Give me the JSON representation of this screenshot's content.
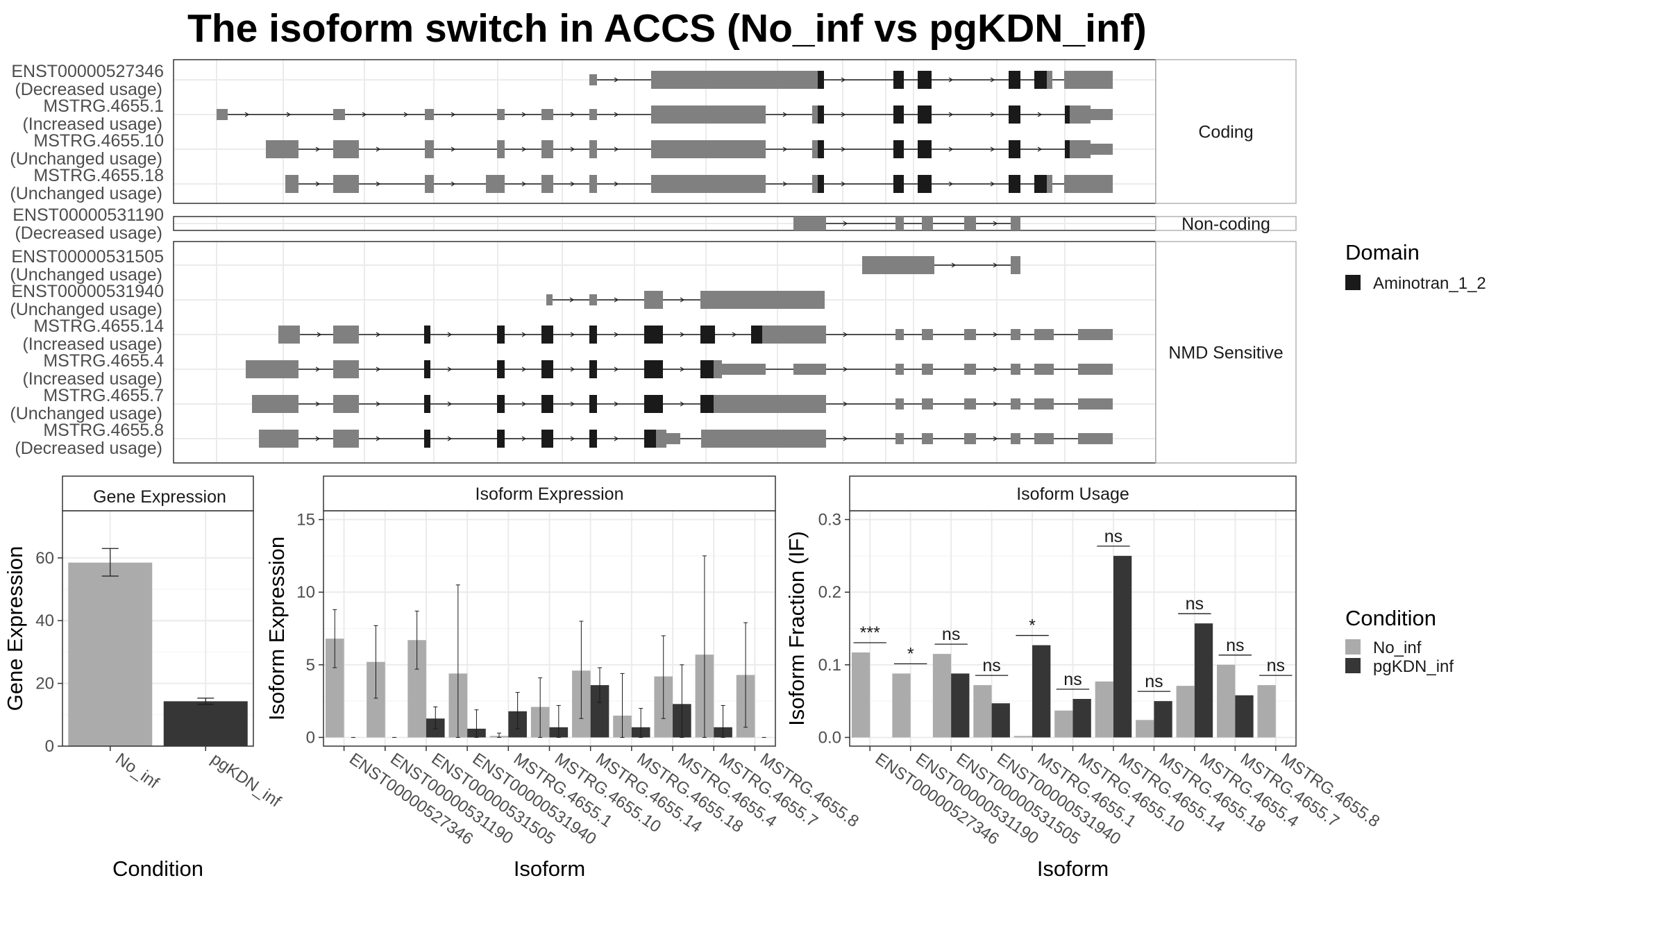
{
  "title": "The isoform switch in ACCS (No_inf vs pgKDN_inf)",
  "colors": {
    "no_inf": "#ababab",
    "pgkdn_inf": "#363636",
    "exon": "#808080",
    "domain": "#1a1a1a"
  },
  "structure": {
    "facets": [
      {
        "label": "Coding",
        "isoforms": [
          {
            "id": "ENST00000527346",
            "usage": "(Decreased usage)"
          },
          {
            "id": "MSTRG.4655.1",
            "usage": "(Increased usage)"
          },
          {
            "id": "MSTRG.4655.10",
            "usage": "(Unchanged usage)"
          },
          {
            "id": "MSTRG.4655.18",
            "usage": "(Unchanged usage)"
          }
        ]
      },
      {
        "label": "Non-coding",
        "isoforms": [
          {
            "id": "ENST00000531190",
            "usage": "(Decreased usage)"
          }
        ]
      },
      {
        "label": "NMD Sensitive",
        "isoforms": [
          {
            "id": "ENST00000531505",
            "usage": "(Unchanged usage)"
          },
          {
            "id": "ENST00000531940",
            "usage": "(Unchanged usage)"
          },
          {
            "id": "MSTRG.4655.14",
            "usage": "(Increased usage)"
          },
          {
            "id": "MSTRG.4655.4",
            "usage": "(Increased usage)"
          },
          {
            "id": "MSTRG.4655.7",
            "usage": "(Unchanged usage)"
          },
          {
            "id": "MSTRG.4655.8",
            "usage": "(Decreased usage)"
          }
        ]
      }
    ],
    "domain_legend": {
      "title": "Domain",
      "items": [
        "Aminotran_1_2"
      ]
    }
  },
  "condition_legend": {
    "title": "Condition",
    "items": [
      "No_inf",
      "pgKDN_inf"
    ]
  },
  "chart_data": [
    {
      "type": "bar",
      "strip": "Gene Expression",
      "xlabel": "Condition",
      "ylabel": "Gene Expression",
      "categories": [
        "No_inf",
        "pgKDN_inf"
      ],
      "values": [
        58.5,
        14.3
      ],
      "error_low": [
        54.2,
        13.3
      ],
      "error_high": [
        63.0,
        15.3
      ],
      "ylim": [
        0,
        75
      ],
      "yticks": [
        0,
        20,
        40,
        60
      ]
    },
    {
      "type": "bar",
      "strip": "Isoform Expression",
      "xlabel": "Isoform",
      "ylabel": "Isoform Expression",
      "categories": [
        "ENST00000527346",
        "ENST00000531190",
        "ENST00000531505",
        "ENST00000531940",
        "MSTRG.4655.1",
        "MSTRG.4655.10",
        "MSTRG.4655.14",
        "MSTRG.4655.18",
        "MSTRG.4655.4",
        "MSTRG.4655.7",
        "MSTRG.4655.8"
      ],
      "series": [
        {
          "name": "No_inf",
          "values": [
            6.8,
            5.2,
            6.7,
            4.4,
            0.1,
            2.1,
            4.6,
            1.5,
            4.2,
            5.7,
            4.3
          ],
          "error_low": [
            4.8,
            2.7,
            4.7,
            0.0,
            0.0,
            0.0,
            1.3,
            0.0,
            1.3,
            0.0,
            0.7
          ],
          "error_high": [
            8.8,
            7.7,
            8.7,
            10.5,
            0.3,
            4.1,
            8.0,
            4.4,
            7.0,
            12.5,
            7.9
          ]
        },
        {
          "name": "pgKDN_inf",
          "values": [
            0.0,
            0.0,
            1.3,
            0.6,
            1.8,
            0.7,
            3.6,
            0.7,
            2.3,
            0.7,
            0.0
          ],
          "error_low": [
            0.0,
            0.0,
            0.6,
            0.0,
            0.6,
            0.0,
            2.4,
            0.0,
            0.0,
            0.0,
            0.0
          ],
          "error_high": [
            0.0,
            0.0,
            2.1,
            1.9,
            3.1,
            2.2,
            4.8,
            2.0,
            5.0,
            2.2,
            0.0
          ]
        }
      ],
      "ylim": [
        -0.6,
        15.6
      ],
      "yticks": [
        0,
        5,
        10,
        15
      ]
    },
    {
      "type": "bar",
      "strip": "Isoform Usage",
      "xlabel": "Isoform",
      "ylabel": "Isoform Fraction (IF)",
      "categories": [
        "ENST00000527346",
        "ENST00000531190",
        "ENST00000531505",
        "ENST00000531940",
        "MSTRG.4655.1",
        "MSTRG.4655.10",
        "MSTRG.4655.14",
        "MSTRG.4655.18",
        "MSTRG.4655.4",
        "MSTRG.4655.7",
        "MSTRG.4655.8"
      ],
      "series": [
        {
          "name": "No_inf",
          "values": [
            0.117,
            0.088,
            0.115,
            0.072,
            0.002,
            0.037,
            0.077,
            0.024,
            0.071,
            0.1,
            0.072
          ]
        },
        {
          "name": "pgKDN_inf",
          "values": [
            0.0,
            0.0,
            0.088,
            0.047,
            0.127,
            0.053,
            0.25,
            0.05,
            0.157,
            0.058,
            0.0
          ]
        }
      ],
      "significance": [
        "***",
        "*",
        "ns",
        "ns",
        "*",
        "ns",
        "ns",
        "ns",
        "ns",
        "ns",
        "ns"
      ],
      "ylim": [
        -0.012,
        0.312
      ],
      "yticks": [
        0.0,
        0.1,
        0.2,
        0.3
      ],
      "ytick_labels": [
        "0.0",
        "0.1",
        "0.2",
        "0.3"
      ]
    }
  ]
}
